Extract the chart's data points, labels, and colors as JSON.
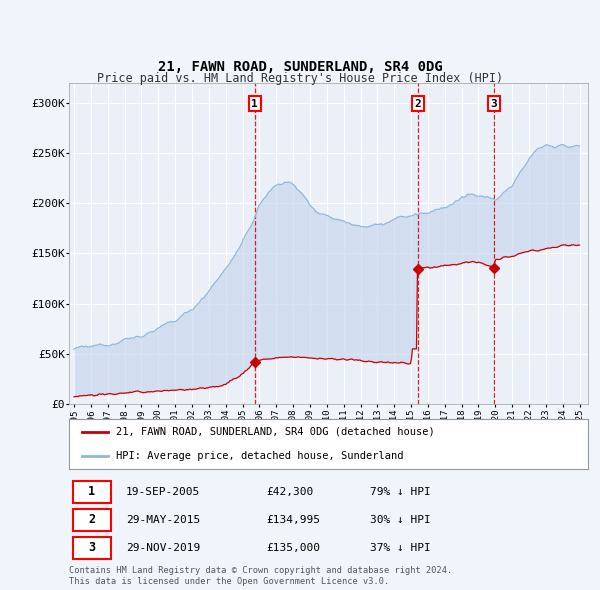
{
  "title": "21, FAWN ROAD, SUNDERLAND, SR4 0DG",
  "subtitle": "Price paid vs. HM Land Registry's House Price Index (HPI)",
  "property_label": "21, FAWN ROAD, SUNDERLAND, SR4 0DG (detached house)",
  "hpi_label": "HPI: Average price, detached house, Sunderland",
  "transactions": [
    {
      "num": 1,
      "date": "19-SEP-2005",
      "price": 42300,
      "pct": "79%",
      "dir": "↓",
      "year_x": 2005.72
    },
    {
      "num": 2,
      "date": "29-MAY-2015",
      "price": 134995,
      "pct": "30%",
      "dir": "↓",
      "year_x": 2015.41
    },
    {
      "num": 3,
      "date": "29-NOV-2019",
      "price": 135000,
      "pct": "37%",
      "dir": "↓",
      "year_x": 2019.91
    }
  ],
  "footnote1": "Contains HM Land Registry data © Crown copyright and database right 2024.",
  "footnote2": "This data is licensed under the Open Government Licence v3.0.",
  "background_color": "#f0f4fb",
  "plot_bg_color": "#eaeff8",
  "grid_color": "#ffffff",
  "hpi_color": "#90b8d8",
  "property_color": "#cc0000",
  "shade_color": "#c8d8ee",
  "ylim": [
    0,
    320000
  ],
  "yticks": [
    0,
    50000,
    100000,
    150000,
    200000,
    250000,
    300000
  ],
  "xlim_start": 1994.7,
  "xlim_end": 2025.5,
  "hpi_keypoints_x": [
    1995,
    1996,
    1997,
    1998,
    1999,
    2000,
    2001,
    2002,
    2003,
    2004,
    2005,
    2005.5,
    2006,
    2006.5,
    2007,
    2007.5,
    2008,
    2008.5,
    2009,
    2009.5,
    2010,
    2010.5,
    2011,
    2011.5,
    2012,
    2012.5,
    2013,
    2013.5,
    2014,
    2014.5,
    2015,
    2015.5,
    2016,
    2016.5,
    2017,
    2017.5,
    2018,
    2018.5,
    2019,
    2019.5,
    2020,
    2020.5,
    2021,
    2021.5,
    2022,
    2022.5,
    2023,
    2023.5,
    2024,
    2024.5,
    2025
  ],
  "hpi_keypoints_y": [
    55000,
    57000,
    60000,
    64000,
    68000,
    75000,
    83000,
    95000,
    112000,
    135000,
    160000,
    178000,
    198000,
    210000,
    218000,
    222000,
    218000,
    210000,
    200000,
    190000,
    188000,
    185000,
    182000,
    180000,
    178000,
    177000,
    178000,
    180000,
    183000,
    186000,
    188000,
    189000,
    190000,
    193000,
    196000,
    200000,
    205000,
    208000,
    206000,
    205000,
    205000,
    210000,
    218000,
    230000,
    245000,
    255000,
    258000,
    256000,
    258000,
    256000,
    255000
  ],
  "prop_keypoints_x": [
    1995,
    1997,
    1999,
    2001,
    2003,
    2004,
    2005,
    2005.5,
    2005.72,
    2006,
    2007,
    2008,
    2009,
    2010,
    2011,
    2012,
    2013,
    2014,
    2015,
    2015.41,
    2015.5,
    2016,
    2017,
    2018,
    2019,
    2019.91,
    2020,
    2021,
    2022,
    2023,
    2024,
    2025
  ],
  "prop_keypoints_y": [
    8000,
    10000,
    12000,
    14000,
    16000,
    20000,
    30000,
    38000,
    42300,
    44000,
    46000,
    47000,
    46000,
    45000,
    44500,
    43000,
    42000,
    41000,
    40500,
    134995,
    135000,
    136000,
    138000,
    140000,
    142000,
    135000,
    143000,
    148000,
    152000,
    155000,
    158000,
    158000
  ]
}
